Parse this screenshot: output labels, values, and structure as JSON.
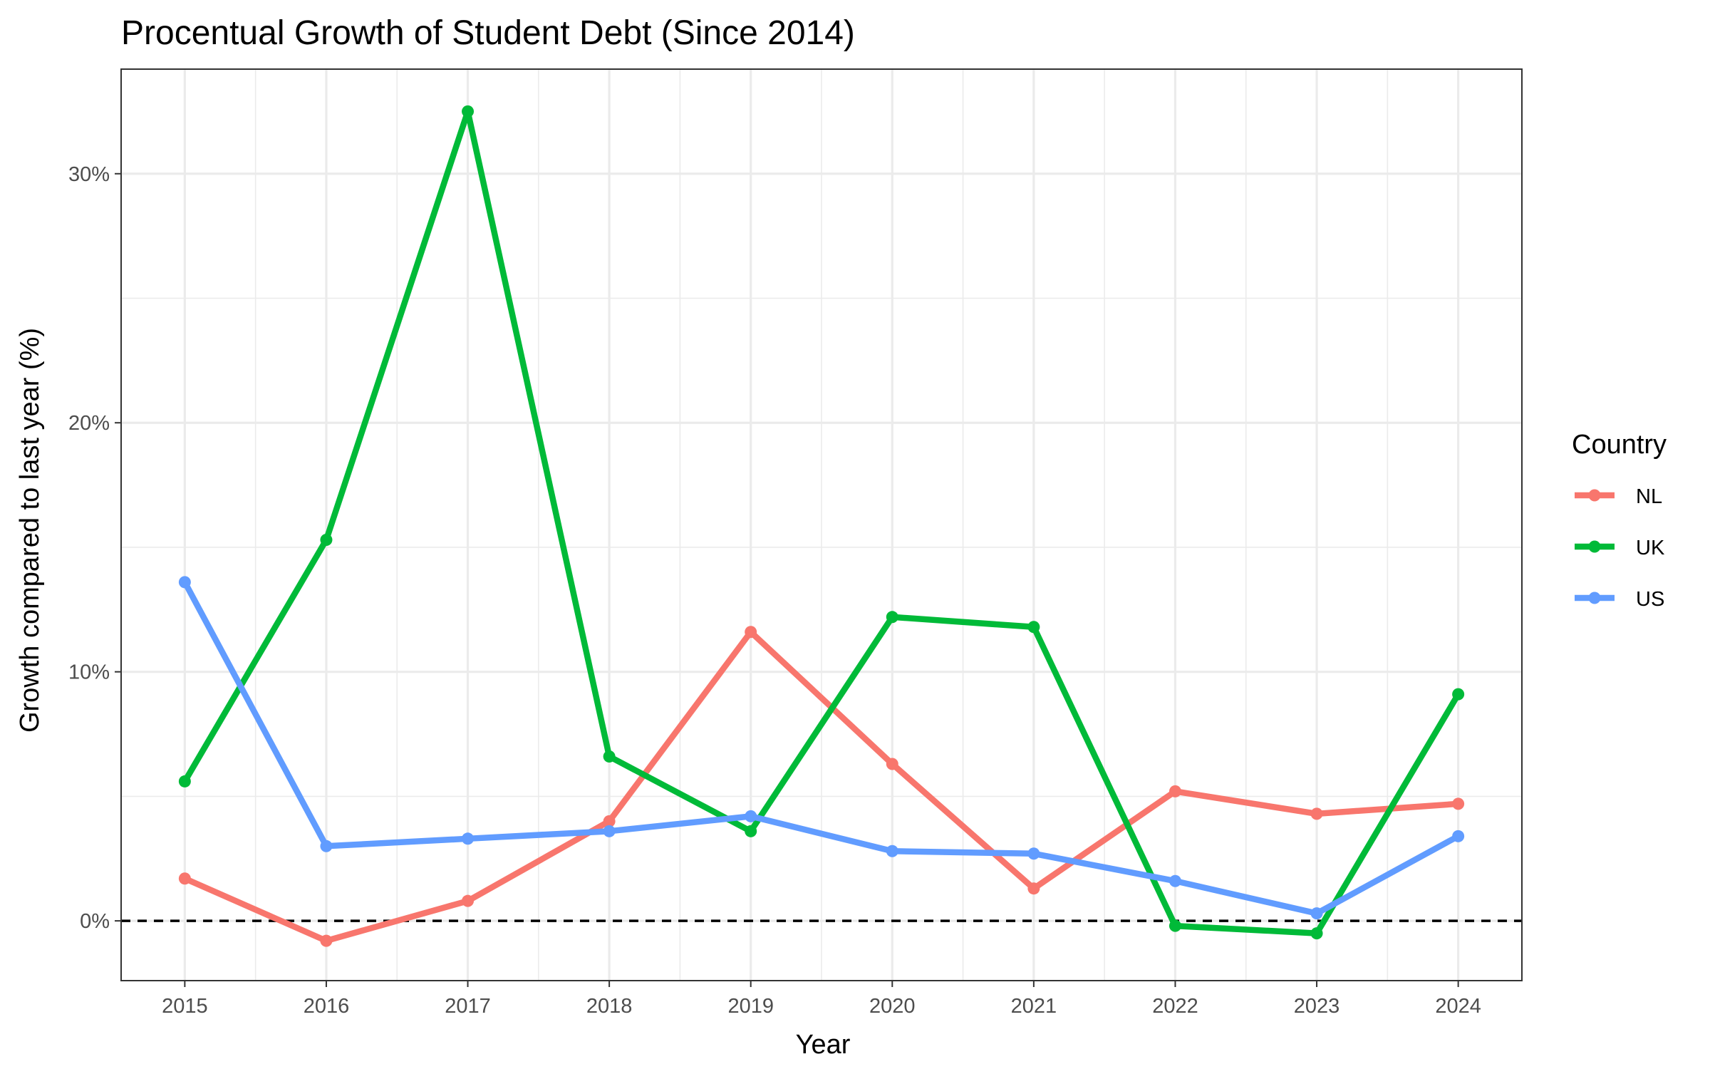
{
  "chart_data": {
    "type": "line",
    "title": "Procentual Growth of Student Debt (Since 2014)",
    "xlabel": "Year",
    "ylabel": "Growth compared to last year (%)",
    "x": [
      2015,
      2016,
      2017,
      2018,
      2019,
      2020,
      2021,
      2022,
      2023,
      2024
    ],
    "xlim": [
      2014.55,
      2024.45
    ],
    "ylim": [
      -2.4,
      34.2
    ],
    "y_ticks": [
      0,
      10,
      20,
      30
    ],
    "y_tick_labels": [
      "0%",
      "10%",
      "20%",
      "30%"
    ],
    "y_minor_ticks": [
      5,
      15,
      25
    ],
    "reference_line": {
      "y": 0,
      "style": "dashed",
      "color": "#000000"
    },
    "grid": true,
    "legend_title": "Country",
    "legend_position": "right",
    "series": [
      {
        "name": "NL",
        "color": "#F8766D",
        "values": [
          1.7,
          -0.8,
          0.8,
          4.0,
          11.6,
          6.3,
          1.3,
          5.2,
          4.3,
          4.7
        ]
      },
      {
        "name": "UK",
        "color": "#00BA38",
        "values": [
          5.6,
          15.3,
          32.5,
          6.6,
          3.6,
          12.2,
          11.8,
          -0.2,
          -0.5,
          9.1
        ]
      },
      {
        "name": "US",
        "color": "#619CFF",
        "values": [
          13.6,
          3.0,
          3.3,
          3.6,
          4.2,
          2.8,
          2.7,
          1.6,
          0.3,
          3.4
        ]
      }
    ]
  }
}
